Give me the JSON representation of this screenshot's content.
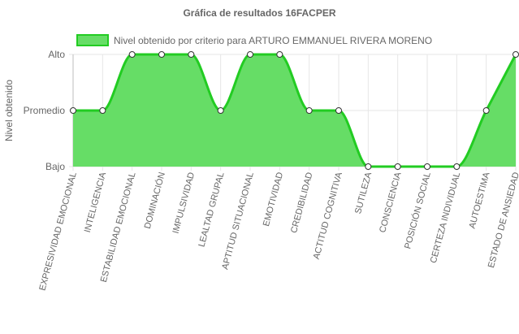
{
  "colors": {
    "fill": "#66dd66",
    "line": "#22cc22",
    "point_fill": "#ffffff",
    "point_stroke": "#333333",
    "text": "#666666",
    "grid": "#e6e6e6"
  },
  "chart_data": {
    "type": "area",
    "title": "Gráfica de resultados 16FACPER",
    "xlabel": "",
    "ylabel": "Nivel obtenido",
    "y_levels": [
      "Bajo",
      "Promedio",
      "Alto"
    ],
    "ylim": [
      0,
      2
    ],
    "grid": true,
    "legend_position": "top",
    "categories": [
      "EXPRESIVIDAD EMOCIONAL",
      "INTELIGENCIA",
      "ESTABILIDAD EMOCIONAL",
      "DOMINACIÓN",
      "IMPULSIVIDAD",
      "LEALTAD GRUPAL",
      "APTITUD SITUACIONAL",
      "EMOTIVIDAD",
      "CREDIBILIDAD",
      "ACTITUD COGNITIVA",
      "SUTILEZA",
      "CONSCIENCIA",
      "POSICIÓN SOCIAL",
      "CERTEZA INDIVIDUAL",
      "AUTOESTIMA",
      "ESTADO DE ANSIEDAD"
    ],
    "series": [
      {
        "name": "Nivel obtenido por criterio para ARTURO EMMANUEL RIVERA MORENO",
        "values": [
          1,
          1,
          2,
          2,
          2,
          1,
          2,
          2,
          1,
          1,
          0,
          0,
          0,
          0,
          1,
          2
        ]
      }
    ]
  }
}
